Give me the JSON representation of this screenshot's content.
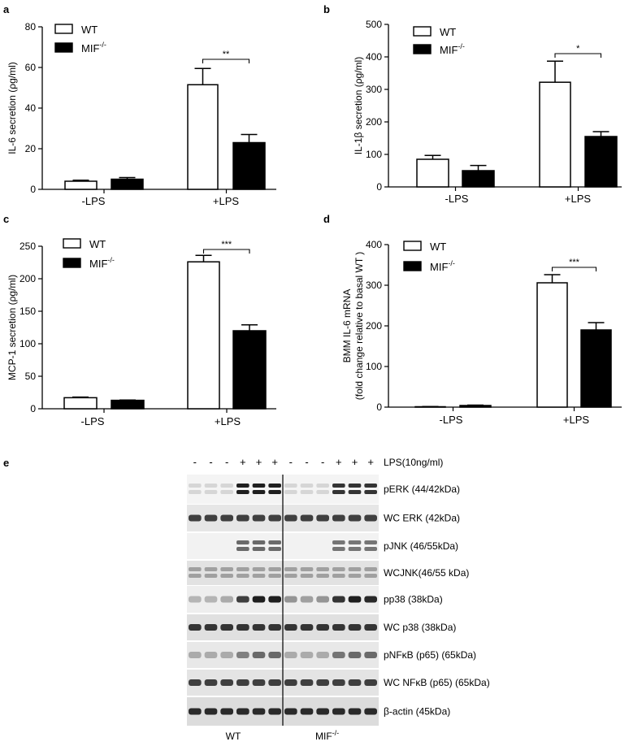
{
  "colors": {
    "wt": "#ffffff",
    "mif": "#000000",
    "axis": "#000000"
  },
  "panels": [
    {
      "letter": "a",
      "ylabel": "IL-6 secretion (ρg/ml)",
      "ymax": 80,
      "yticks": [
        0,
        20,
        40,
        60,
        80
      ],
      "categories": [
        "-LPS",
        "+LPS"
      ],
      "legend": [
        "WT",
        "MIF"
      ],
      "legend_sup": "-/-",
      "significance": "**"
    },
    {
      "letter": "b",
      "ylabel": "IL-1β secretion (ρg/ml)",
      "ymax": 500,
      "yticks": [
        0,
        100,
        200,
        300,
        400,
        500
      ],
      "categories": [
        "-LPS",
        "+LPS"
      ],
      "legend": [
        "WT",
        "MIF"
      ],
      "legend_sup": "-/-",
      "significance": "*"
    },
    {
      "letter": "c",
      "ylabel": "MCP-1 secretion (ρg/ml)",
      "ymax": 250,
      "yticks": [
        0,
        50,
        100,
        150,
        200,
        250
      ],
      "categories": [
        "-LPS",
        "+LPS"
      ],
      "legend": [
        "WT",
        "MIF"
      ],
      "legend_sup": "-/-",
      "significance": "***"
    },
    {
      "letter": "d",
      "ylabel": "BMM IL-6 mRNA",
      "ylabel2": "(fold change relative to basal WT )",
      "ymax": 400,
      "yticks": [
        0,
        100,
        200,
        300,
        400
      ],
      "categories": [
        "-LPS",
        "+LPS"
      ],
      "legend": [
        "WT",
        "MIF"
      ],
      "legend_sup": "-/-",
      "significance": "***"
    }
  ],
  "chart_data": [
    {
      "type": "bar",
      "categories": [
        "-LPS",
        "+LPS"
      ],
      "ylabel": "IL-6 secretion (ρg/ml)",
      "ylim": [
        0,
        80
      ],
      "series": [
        {
          "name": "WT",
          "values": [
            4,
            51.5
          ],
          "errors": [
            0.5,
            8
          ]
        },
        {
          "name": "MIF-/-",
          "values": [
            5,
            23
          ],
          "errors": [
            0.8,
            4
          ]
        }
      ]
    },
    {
      "type": "bar",
      "categories": [
        "-LPS",
        "+LPS"
      ],
      "ylabel": "IL-1β secretion (ρg/ml)",
      "ylim": [
        0,
        500
      ],
      "series": [
        {
          "name": "WT",
          "values": [
            85,
            322
          ],
          "errors": [
            12,
            65
          ]
        },
        {
          "name": "MIF-/-",
          "values": [
            50,
            155
          ],
          "errors": [
            16,
            15
          ]
        }
      ]
    },
    {
      "type": "bar",
      "categories": [
        "-LPS",
        "+LPS"
      ],
      "ylabel": "MCP-1 secretion (ρg/ml)",
      "ylim": [
        0,
        250
      ],
      "series": [
        {
          "name": "WT",
          "values": [
            17,
            226
          ],
          "errors": [
            1,
            10
          ]
        },
        {
          "name": "MIF-/-",
          "values": [
            13,
            120
          ],
          "errors": [
            0.5,
            9
          ]
        }
      ]
    },
    {
      "type": "bar",
      "categories": [
        "-LPS",
        "+LPS"
      ],
      "ylabel": "BMM IL-6 mRNA (fold change relative to basal WT )",
      "ylim": [
        0,
        400
      ],
      "series": [
        {
          "name": "WT",
          "values": [
            1,
            306
          ],
          "errors": [
            0.5,
            20
          ]
        },
        {
          "name": "MIF-/-",
          "values": [
            4,
            190
          ],
          "errors": [
            1,
            18
          ]
        }
      ]
    }
  ],
  "blot": {
    "letter": "e",
    "lps_signs": [
      "-",
      "-",
      "-",
      "+",
      "+",
      "+",
      "-",
      "-",
      "-",
      "+",
      "+",
      "+"
    ],
    "lps_label": "LPS(10ng/ml)",
    "rows": [
      "pERK (44/42kDa)",
      "WC ERK (42kDa)",
      "pJNK (46/55kDa)",
      "WCJNK(46/55 kDa)",
      "pp38 (38kDa)",
      "WC p38 (38kDa)",
      "pNFκB (p65) (65kDa)",
      "WC NFκB (p65) (65kDa)",
      "β-actin (45kDa)"
    ],
    "group_wt": "WT",
    "group_mif": "MIF",
    "group_mif_sup": "-/-"
  }
}
